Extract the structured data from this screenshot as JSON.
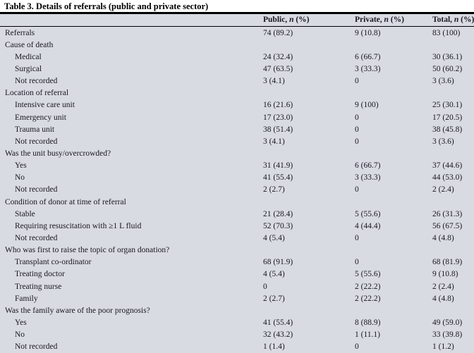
{
  "title": "Table 3. Details of referrals (public and private sector)",
  "colors": {
    "table_background": "#d9dbe3",
    "rule": "#000000",
    "text": "#17171f",
    "title_text": "#000000"
  },
  "table": {
    "columns": [
      {
        "pre": "Public, ",
        "n": "n",
        "post": " (%)"
      },
      {
        "pre": "Private, ",
        "n": "n",
        "post": " (%)"
      },
      {
        "pre": "Total, ",
        "n": "n",
        "post": " (%)"
      }
    ],
    "rows": [
      {
        "label": "Referrals",
        "indent": 0,
        "public": "74 (89.2)",
        "private": "9 (10.8)",
        "total": "83 (100)"
      },
      {
        "label": "Cause of death",
        "indent": 0,
        "public": "",
        "private": "",
        "total": ""
      },
      {
        "label": "Medical",
        "indent": 1,
        "public": "24 (32.4)",
        "private": "6 (66.7)",
        "total": "30 (36.1)"
      },
      {
        "label": "Surgical",
        "indent": 1,
        "public": "47 (63.5)",
        "private": "3 (33.3)",
        "total": "50 (60.2)"
      },
      {
        "label": "Not recorded",
        "indent": 1,
        "public": "3 (4.1)",
        "private": "0",
        "total": "3 (3.6)"
      },
      {
        "label": "Location of referral",
        "indent": 0,
        "public": "",
        "private": "",
        "total": ""
      },
      {
        "label": "Intensive care unit",
        "indent": 1,
        "public": "16 (21.6)",
        "private": "9 (100)",
        "total": "25 (30.1)"
      },
      {
        "label": "Emergency unit",
        "indent": 1,
        "public": "17 (23.0)",
        "private": "0",
        "total": "17 (20.5)"
      },
      {
        "label": "Trauma unit",
        "indent": 1,
        "public": "38 (51.4)",
        "private": "0",
        "total": "38 (45.8)"
      },
      {
        "label": "Not recorded",
        "indent": 1,
        "public": "3 (4.1)",
        "private": "0",
        "total": "3 (3.6)"
      },
      {
        "label": "Was the unit busy/overcrowded?",
        "indent": 0,
        "public": "",
        "private": "",
        "total": ""
      },
      {
        "label": "Yes",
        "indent": 1,
        "public": "31 (41.9)",
        "private": "6 (66.7)",
        "total": "37 (44.6)"
      },
      {
        "label": "No",
        "indent": 1,
        "public": "41 (55.4)",
        "private": "3 (33.3)",
        "total": "44 (53.0)"
      },
      {
        "label": "Not recorded",
        "indent": 1,
        "public": "2 (2.7)",
        "private": "0",
        "total": "2 (2.4)"
      },
      {
        "label": "Condition of donor at time of referral",
        "indent": 0,
        "public": "",
        "private": "",
        "total": ""
      },
      {
        "label": "Stable",
        "indent": 1,
        "public": "21 (28.4)",
        "private": "5 (55.6)",
        "total": "26 (31.3)"
      },
      {
        "label": "Requiring resuscitation with ≥1 L fluid",
        "indent": 1,
        "public": "52 (70.3)",
        "private": "4 (44.4)",
        "total": "56 (67.5)"
      },
      {
        "label": "Not recorded",
        "indent": 1,
        "public": "4 (5.4)",
        "private": "0",
        "total": "4 (4.8)"
      },
      {
        "label": "Who was first to raise the topic of organ donation?",
        "indent": 0,
        "public": "",
        "private": "",
        "total": ""
      },
      {
        "label": "Transplant co-ordinator",
        "indent": 1,
        "public": "68 (91.9)",
        "private": "0",
        "total": "68 (81.9)"
      },
      {
        "label": "Treating doctor",
        "indent": 1,
        "public": "4 (5.4)",
        "private": "5 (55.6)",
        "total": "9 (10.8)"
      },
      {
        "label": "Treating nurse",
        "indent": 1,
        "public": "0",
        "private": "2 (22.2)",
        "total": "2 (2.4)"
      },
      {
        "label": "Family",
        "indent": 1,
        "public": "2 (2.7)",
        "private": "2 (22.2)",
        "total": "4 (4.8)"
      },
      {
        "label": "Was the family aware of the poor prognosis?",
        "indent": 0,
        "public": "",
        "private": "",
        "total": ""
      },
      {
        "label": "Yes",
        "indent": 1,
        "public": "41 (55.4)",
        "private": "8 (88.9)",
        "total": "49 (59.0)"
      },
      {
        "label": "No",
        "indent": 1,
        "public": "32 (43.2)",
        "private": "1 (11.1)",
        "total": "33 (39.8)"
      },
      {
        "label": "Not recorded",
        "indent": 1,
        "public": "1 (1.4)",
        "private": "0",
        "total": "1 (1.2)"
      }
    ]
  }
}
